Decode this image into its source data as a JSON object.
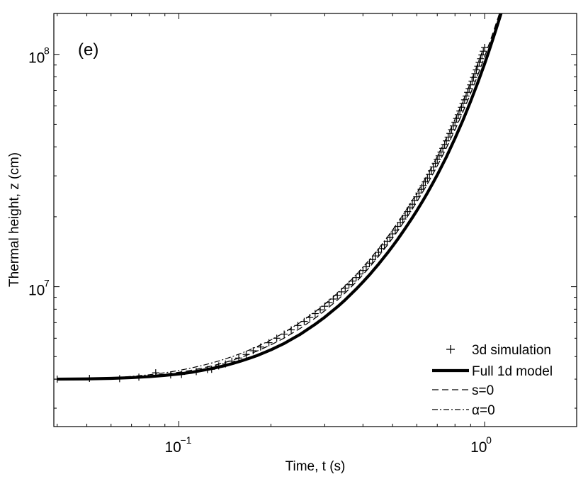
{
  "chart_data": {
    "type": "line",
    "panel_label": "(e)",
    "xlabel": "Time, t (s)",
    "ylabel": "Thermal height, z (cm)",
    "xscale": "log",
    "yscale": "log",
    "xlim": [
      0.039,
      2.0
    ],
    "ylim": [
      2500000,
      150000000
    ],
    "xticks": [
      {
        "value": 0.1,
        "base": "10",
        "exp": "−1"
      },
      {
        "value": 1.0,
        "base": "10",
        "exp": "0"
      }
    ],
    "yticks": [
      {
        "value": 10000000,
        "base": "10",
        "exp": "7"
      },
      {
        "value": 100000000,
        "base": "10",
        "exp": "8"
      }
    ],
    "legend_position": "bottom-right",
    "series": [
      {
        "name": "3d simulation",
        "style": "plus-markers",
        "x": [
          0.04,
          0.051,
          0.064,
          0.074,
          0.084,
          0.094,
          0.102,
          0.114,
          0.124,
          0.128,
          0.135,
          0.142,
          0.149,
          0.157,
          0.166,
          0.175,
          0.185,
          0.197,
          0.209,
          0.221,
          0.233,
          0.245,
          0.257,
          0.268,
          0.279,
          0.29,
          0.3,
          0.31,
          0.32,
          0.33,
          0.34,
          0.35,
          0.36,
          0.37,
          0.38,
          0.39,
          0.4,
          0.41,
          0.42,
          0.43,
          0.44,
          0.45,
          0.46,
          0.47,
          0.48,
          0.49,
          0.5,
          0.51,
          0.52,
          0.53,
          0.54,
          0.55,
          0.56,
          0.57,
          0.58,
          0.59,
          0.6,
          0.61,
          0.62,
          0.63,
          0.64,
          0.65,
          0.66,
          0.67,
          0.68,
          0.69,
          0.7,
          0.71,
          0.72,
          0.73,
          0.74,
          0.75,
          0.76,
          0.77,
          0.78,
          0.79,
          0.8,
          0.81,
          0.82,
          0.83,
          0.84,
          0.85,
          0.86,
          0.87,
          0.88,
          0.89,
          0.9,
          0.91,
          0.92,
          0.93,
          0.94,
          0.95,
          0.96,
          0.97,
          0.98,
          0.99,
          1.0
        ],
        "y": [
          4000000,
          4030000,
          4020000,
          4080000,
          4260000,
          4170000,
          4190000,
          4310000,
          4400000,
          4410000,
          4560000,
          4650000,
          4780000,
          4930000,
          5110000,
          5300000,
          5500000,
          5740000,
          6000000,
          6250000,
          6520000,
          6810000,
          7090000,
          7370000,
          7660000,
          7950000,
          8240000,
          8550000,
          8850000,
          9170000,
          9500000,
          9850000,
          10200000,
          10570000,
          10950000,
          11340000,
          11750000,
          12180000,
          12630000,
          13090000,
          13570000,
          14070000,
          14590000,
          15130000,
          15690000,
          16280000,
          16880000,
          17510000,
          18170000,
          18840000,
          19550000,
          20280000,
          21040000,
          21830000,
          22650000,
          23500000,
          24380000,
          25300000,
          26250000,
          27240000,
          28260000,
          29330000,
          30430000,
          31570000,
          32760000,
          33990000,
          35270000,
          36600000,
          37980000,
          39410000,
          40900000,
          42440000,
          44040000,
          45700000,
          47420000,
          49210000,
          51060000,
          52990000,
          54990000,
          57060000,
          59210000,
          61440000,
          63760000,
          66160000,
          68660000,
          71250000,
          73940000,
          76730000,
          79620000,
          82630000,
          85750000,
          88980000,
          92340000,
          95820000,
          99430000,
          103200000,
          107100000
        ]
      },
      {
        "name": "Full 1d model",
        "style": "thick-solid",
        "x": [
          0.04,
          0.05,
          0.06,
          0.07,
          0.08,
          0.09,
          0.1,
          0.11,
          0.12,
          0.13,
          0.14,
          0.15,
          0.16,
          0.17,
          0.18,
          0.19,
          0.2,
          0.22,
          0.25,
          0.28,
          0.3,
          0.33,
          0.35,
          0.38,
          0.4,
          0.42,
          0.45,
          0.48,
          0.5,
          0.52,
          0.55,
          0.58,
          0.6,
          0.63,
          0.65,
          0.68,
          0.7,
          0.73,
          0.75,
          0.78,
          0.8,
          0.83,
          0.85,
          0.88,
          0.9,
          0.93,
          0.95,
          0.98,
          1.0,
          1.03,
          1.06,
          1.09,
          1.12,
          1.15
        ],
        "y": [
          4000000,
          4010000,
          4030000,
          4060000,
          4100000,
          4150000,
          4210000,
          4280000,
          4370000,
          4460000,
          4560000,
          4670000,
          4790000,
          4920000,
          5050000,
          5200000,
          5350000,
          5680000,
          6250000,
          6910000,
          7390000,
          8190000,
          8780000,
          9760000,
          10480000,
          11240000,
          12510000,
          13910000,
          14930000,
          16020000,
          17820000,
          19800000,
          21240000,
          23610000,
          25330000,
          28200000,
          30270000,
          33740000,
          36200000,
          40500000,
          43500000,
          48600000,
          52200000,
          58400000,
          62800000,
          70300000,
          75600000,
          84700000,
          91100000,
          102100000,
          114500000,
          128200000,
          143600000,
          160700000
        ]
      },
      {
        "name": "s=0",
        "style": "dashed",
        "x": [
          0.04,
          0.05,
          0.06,
          0.07,
          0.08,
          0.09,
          0.1,
          0.11,
          0.12,
          0.13,
          0.14,
          0.15,
          0.16,
          0.17,
          0.18,
          0.19,
          0.2,
          0.22,
          0.25,
          0.28,
          0.3,
          0.33,
          0.35,
          0.38,
          0.4,
          0.42,
          0.45,
          0.48,
          0.5,
          0.52,
          0.55,
          0.58,
          0.6,
          0.63,
          0.65,
          0.68,
          0.7,
          0.73,
          0.75,
          0.78,
          0.8,
          0.83,
          0.85,
          0.88,
          0.9,
          0.93,
          0.95,
          0.98,
          1.0,
          1.03,
          1.06,
          1.09,
          1.12
        ],
        "y": [
          4000000,
          4010000,
          4040000,
          4080000,
          4140000,
          4200000,
          4280000,
          4370000,
          4470000,
          4580000,
          4700000,
          4830000,
          4970000,
          5120000,
          5280000,
          5450000,
          5620000,
          5990000,
          6630000,
          7350000,
          7880000,
          8760000,
          9410000,
          10480000,
          11270000,
          12120000,
          13520000,
          15060000,
          16190000,
          17400000,
          19390000,
          21590000,
          23180000,
          25810000,
          27710000,
          30860000,
          33130000,
          36910000,
          39630000,
          44150000,
          47410000,
          52830000,
          56760000,
          63270000,
          67990000,
          75800000,
          81500000,
          90900000,
          97700000,
          109000000,
          121500000,
          135500000,
          151000000
        ]
      },
      {
        "name": "α=0",
        "style": "dash-dot",
        "x": [
          0.04,
          0.05,
          0.06,
          0.07,
          0.08,
          0.09,
          0.1,
          0.11,
          0.12,
          0.13,
          0.14,
          0.15,
          0.16,
          0.17,
          0.18,
          0.19,
          0.2,
          0.22,
          0.25,
          0.28,
          0.3,
          0.33,
          0.35,
          0.38,
          0.4,
          0.42,
          0.45,
          0.48,
          0.5,
          0.52,
          0.55,
          0.58,
          0.6,
          0.63,
          0.65,
          0.68,
          0.7,
          0.73,
          0.75,
          0.78,
          0.8,
          0.83,
          0.85,
          0.88,
          0.9,
          0.93,
          0.95,
          0.98
        ],
        "y": [
          4000000,
          4020000,
          4050000,
          4110000,
          4180000,
          4260000,
          4360000,
          4470000,
          4590000,
          4720000,
          4860000,
          5010000,
          5170000,
          5340000,
          5520000,
          5710000,
          5900000,
          6320000,
          7030000,
          7820000,
          8400000,
          9370000,
          10080000,
          11250000,
          12130000,
          13060000,
          14590000,
          16290000,
          17540000,
          18880000,
          21080000,
          23520000,
          25290000,
          28210000,
          30330000,
          33850000,
          36390000,
          40640000,
          43700000,
          48800000,
          52500000,
          58600000,
          63100000,
          70500000,
          75900000,
          84800000,
          91300000,
          102000000
        ]
      }
    ]
  }
}
